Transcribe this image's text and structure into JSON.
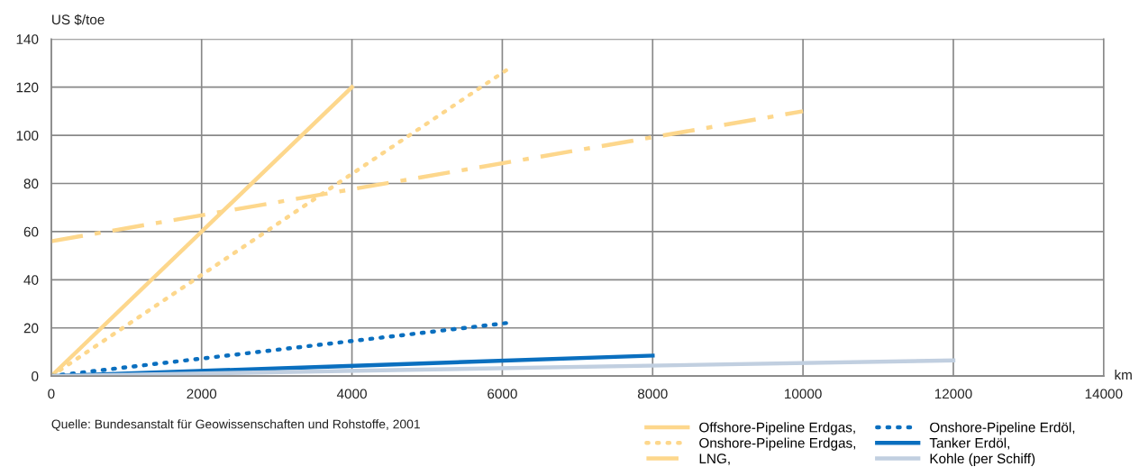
{
  "chart_data": {
    "type": "line",
    "xlabel": "km",
    "ylabel": "US $/toe",
    "xlim": [
      0,
      14000
    ],
    "xticks": [
      0,
      2000,
      4000,
      6000,
      8000,
      10000,
      12000,
      14000
    ],
    "ylim": [
      0,
      140
    ],
    "yticks": [
      0,
      20,
      40,
      60,
      80,
      100,
      120,
      140
    ],
    "grid": true,
    "legend": "bottom right",
    "annotations": [
      "Quelle: Bundesanstalt für Geowissenschaften und Rohstoffe, 2001"
    ],
    "series": [
      {
        "name": "Offshore-Pipeline Erdgas,",
        "color": "#fdd78c",
        "line_style": "solid",
        "x": [
          0,
          4000
        ],
        "values": [
          0,
          120
        ]
      },
      {
        "name": "Onshore-Pipeline Erdgas,",
        "color": "#fdd78c",
        "line_style": "dotted",
        "x": [
          0,
          6050
        ],
        "values": [
          0,
          127
        ]
      },
      {
        "name": "LNG,",
        "color": "#fdd78c",
        "line_style": "dashdot",
        "x": [
          0,
          10000
        ],
        "values": [
          56,
          110
        ]
      },
      {
        "name": "Onshore-Pipeline Erdöl,",
        "color": "#0a6fbf",
        "line_style": "dotted",
        "x": [
          0,
          6050
        ],
        "values": [
          0,
          22
        ]
      },
      {
        "name": "Tanker Erdöl,",
        "color": "#0a6fbf",
        "line_style": "solid",
        "x": [
          0,
          8000
        ],
        "values": [
          0,
          8.5
        ]
      },
      {
        "name": "Kohle (per Schiff)",
        "color": "#c1cfe0",
        "line_style": "solid",
        "x": [
          0,
          12000
        ],
        "values": [
          0,
          6.5
        ]
      }
    ]
  }
}
